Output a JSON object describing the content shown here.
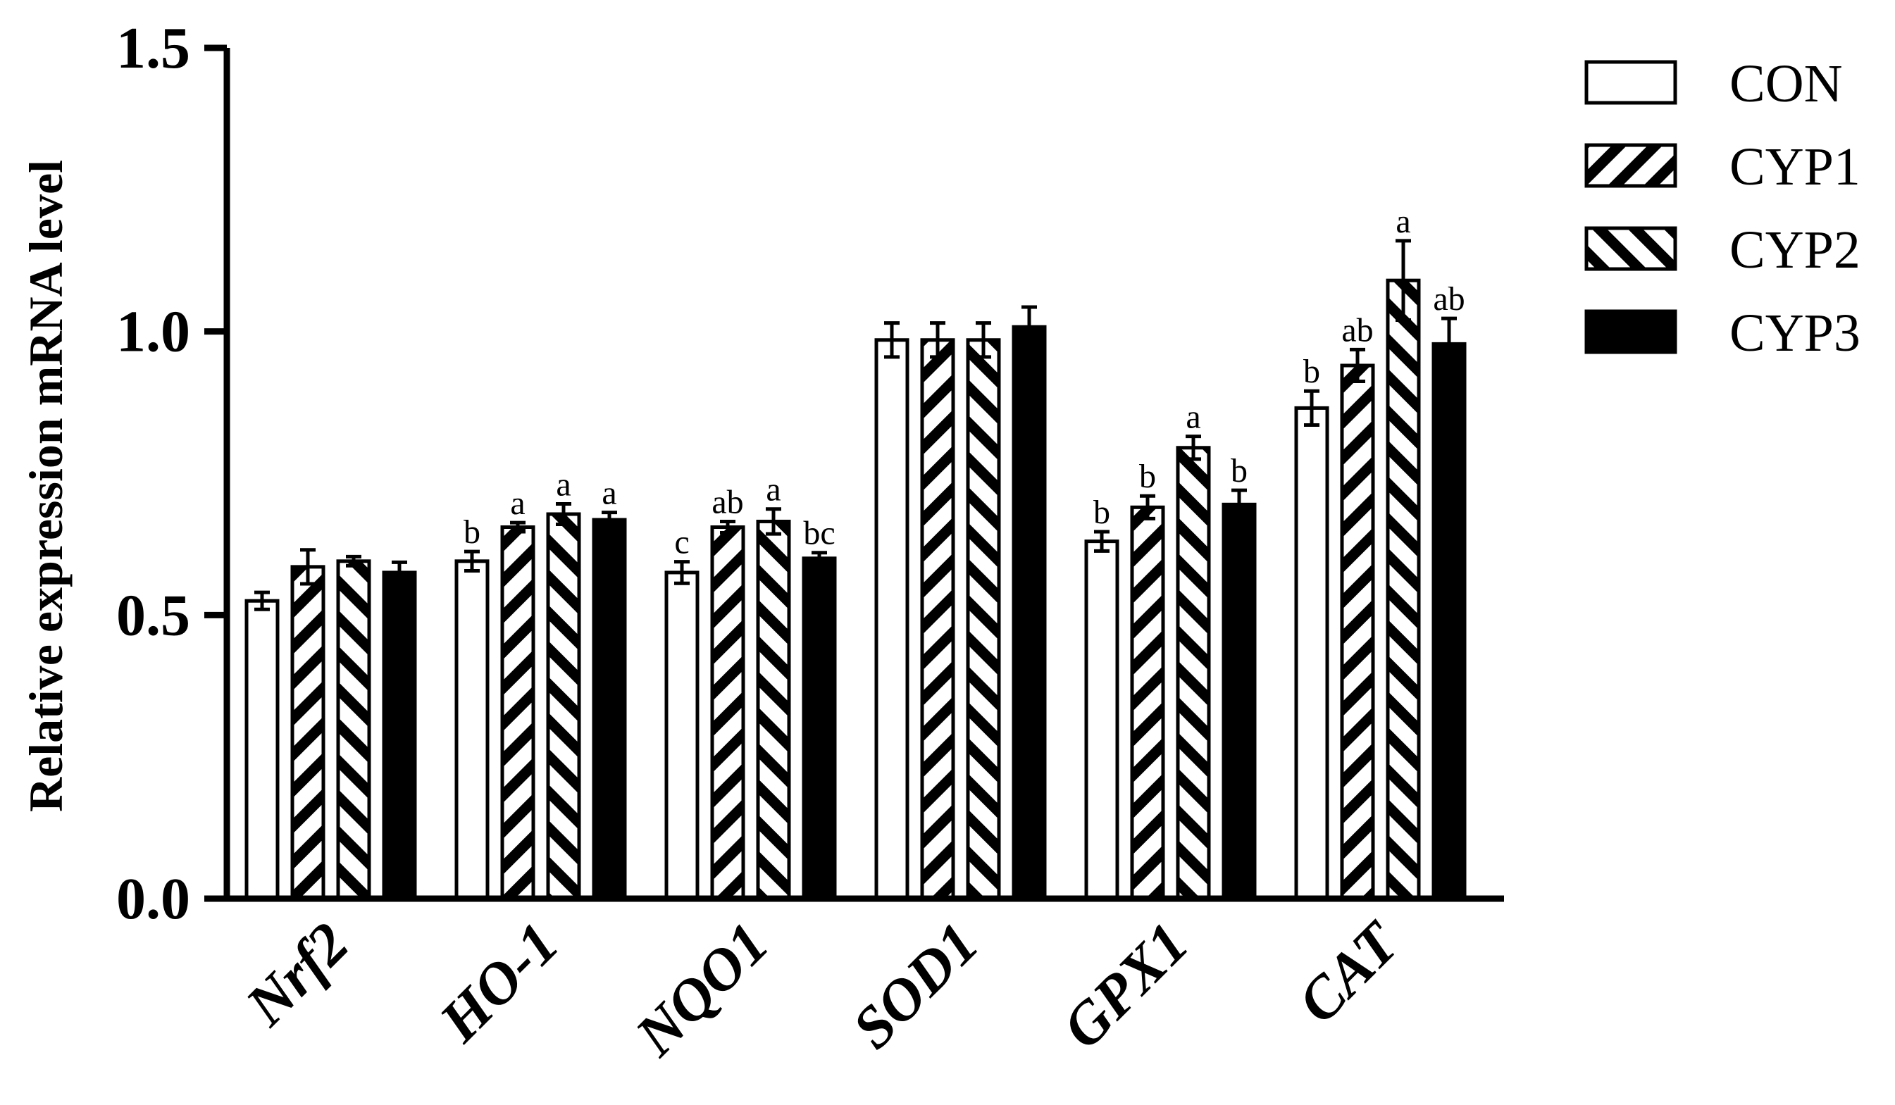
{
  "chart_data": {
    "type": "bar",
    "ylabel": "Relative expression mRNA  level",
    "xlabel": "",
    "ylim": [
      0,
      1.5
    ],
    "yticks": [
      "0.0",
      "0.5",
      "1.0",
      "1.5"
    ],
    "ytick_values": [
      0,
      0.5,
      1.0,
      1.5
    ],
    "categories": [
      "Nrf2",
      "HO-1",
      "NQO1",
      "SOD1",
      "GPX1",
      "CAT"
    ],
    "series": [
      {
        "name": "CON",
        "pattern": "open",
        "values": [
          0.525,
          0.595,
          0.575,
          0.985,
          0.63,
          0.865
        ],
        "errors": [
          0.015,
          0.017,
          0.019,
          0.03,
          0.017,
          0.03
        ],
        "labels": [
          "",
          "b",
          "c",
          "",
          "b",
          "b"
        ]
      },
      {
        "name": "CYP1",
        "pattern": "hatch-backslash",
        "values": [
          0.585,
          0.655,
          0.655,
          0.985,
          0.69,
          0.94
        ],
        "errors": [
          0.03,
          0.008,
          0.01,
          0.03,
          0.02,
          0.028
        ],
        "labels": [
          "",
          "a",
          "ab",
          "",
          "b",
          "ab"
        ]
      },
      {
        "name": "CYP2",
        "pattern": "hatch-slash",
        "values": [
          0.595,
          0.678,
          0.665,
          0.985,
          0.795,
          1.09
        ],
        "errors": [
          0.008,
          0.018,
          0.022,
          0.03,
          0.02,
          0.07
        ],
        "labels": [
          "",
          "a",
          "a",
          "",
          "a",
          "a"
        ]
      },
      {
        "name": "CYP3",
        "pattern": "solid",
        "values": [
          0.575,
          0.668,
          0.6,
          1.008,
          0.695,
          0.978
        ],
        "errors": [
          0.018,
          0.013,
          0.01,
          0.035,
          0.025,
          0.045
        ],
        "labels": [
          "",
          "a",
          "bc",
          "",
          "b",
          "ab"
        ]
      }
    ],
    "legend_position": "top-right",
    "grid": false
  }
}
